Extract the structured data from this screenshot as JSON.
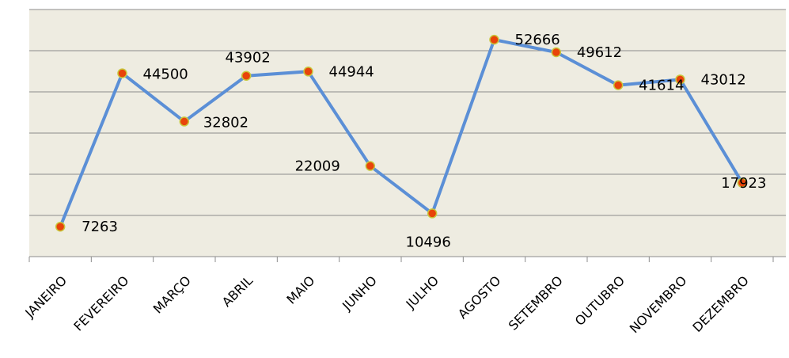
{
  "chart_data": {
    "type": "line",
    "categories": [
      "JANEIRO",
      "FEVEREIRO",
      "MARÇO",
      "ABRIL",
      "MAIO",
      "JUNHO",
      "JULHO",
      "AGOSTO",
      "SETEMBRO",
      "OUTUBRO",
      "NOVEMBRO",
      "DEZEMBRO"
    ],
    "series": [
      {
        "color": "#5b8fd6",
        "values": [
          7263,
          44500,
          32802,
          43902,
          44944,
          22009,
          10496,
          52666,
          49612,
          41614,
          43012,
          17923
        ]
      }
    ],
    "marker_color": "#e8440a",
    "ylim": [
      0,
      60000
    ],
    "yticks": [
      0,
      10000,
      20000,
      30000,
      40000,
      50000,
      60000
    ],
    "grid": true
  }
}
